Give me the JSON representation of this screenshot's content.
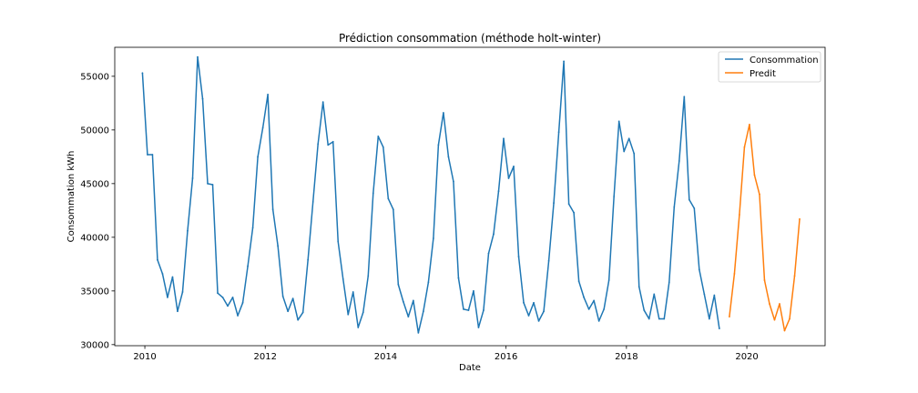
{
  "chart_data": {
    "type": "line",
    "title": "Prédiction consommation (méthode holt-winter)",
    "xlabel": "Date",
    "ylabel": "Consommation kWh",
    "xlim": [
      2009.5,
      2021.3
    ],
    "ylim": [
      29900,
      57700
    ],
    "x_ticks": [
      2010,
      2012,
      2014,
      2016,
      2018,
      2020
    ],
    "y_ticks": [
      30000,
      35000,
      40000,
      45000,
      50000,
      55000
    ],
    "grid": false,
    "legend_position": "top-right",
    "series": [
      {
        "name": "Consommation",
        "color": "#1f77b4",
        "x_start": 2009.96,
        "x_step": 0.08333,
        "values": [
          55300,
          47700,
          47700,
          37900,
          36600,
          34400,
          36300,
          33100,
          34900,
          40600,
          45500,
          56800,
          52900,
          45000,
          44900,
          34800,
          34400,
          33600,
          34400,
          32700,
          33900,
          37300,
          40900,
          47500,
          50200,
          53300,
          42600,
          39200,
          34500,
          33100,
          34300,
          32300,
          33000,
          37900,
          43300,
          48700,
          52600,
          48600,
          48900,
          39600,
          36100,
          32800,
          34900,
          31600,
          33000,
          36400,
          44100,
          49400,
          48400,
          43600,
          42600,
          35600,
          34000,
          32600,
          34100,
          31100,
          33100,
          35800,
          39900,
          48600,
          51600,
          47500,
          45200,
          36200,
          33300,
          33200,
          35000,
          31600,
          33200,
          38500,
          40300,
          44300,
          49200,
          45500,
          46600,
          38200,
          33900,
          32700,
          33900,
          32200,
          33100,
          37800,
          43200,
          49800,
          56400,
          43100,
          42300,
          35900,
          34400,
          33300,
          34100,
          32200,
          33300,
          36000,
          43800,
          50800,
          48000,
          49200,
          47800,
          35400,
          33200,
          32400,
          34700,
          32400,
          32400,
          35800,
          42800,
          47100,
          53100,
          43500,
          42700,
          37000,
          34700,
          32400,
          34600,
          31500
        ]
      },
      {
        "name": "Predit",
        "color": "#ff7f0e",
        "x_start": 2019.71,
        "x_step": 0.08333,
        "values": [
          32600,
          36600,
          42100,
          48400,
          50500,
          45800,
          44000,
          36000,
          33800,
          32300,
          33800,
          31300,
          32400,
          36400,
          41700
        ]
      }
    ]
  }
}
